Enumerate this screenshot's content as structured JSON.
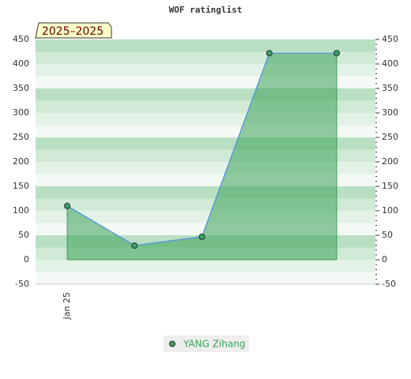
{
  "chart_data": {
    "type": "area",
    "title": "WOF ratinglist",
    "annotation": "2025–2025",
    "categories": [
      "Jan 25",
      null,
      null,
      null,
      null
    ],
    "series": [
      {
        "name": "YANG Zihang",
        "color": "#3aa35a",
        "values": [
          110,
          29,
          47,
          422,
          422
        ]
      }
    ],
    "ylim": [
      -50,
      450
    ],
    "yticks": [
      -50,
      0,
      50,
      100,
      150,
      200,
      250,
      300,
      350,
      400,
      450
    ],
    "grid": true,
    "legend": "bottom"
  }
}
